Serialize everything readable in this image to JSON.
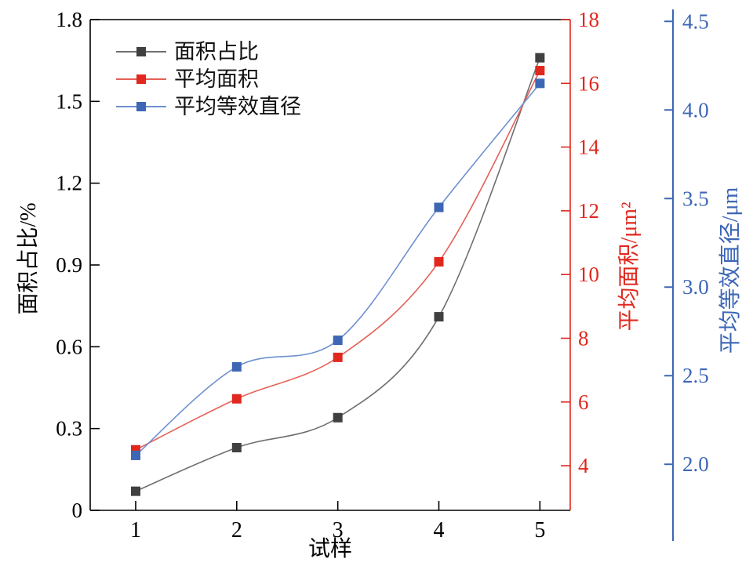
{
  "chart_data": {
    "type": "line",
    "xlabel": "试样",
    "x": [
      1,
      2,
      3,
      4,
      5
    ],
    "x_tick_labels": [
      "1",
      "2",
      "3",
      "4",
      "5"
    ],
    "grid": false,
    "legend_position": "top-left",
    "series": [
      {
        "key": "area-fraction",
        "name": "面积占比",
        "axis": "left",
        "line_color": "#6f6f6f",
        "marker_color": "#404040",
        "values": [
          0.07,
          0.23,
          0.34,
          0.71,
          1.66
        ]
      },
      {
        "key": "average-area",
        "name": "平均面积",
        "axis": "right1",
        "line_color": "#e56057",
        "marker_color": "#e0281e",
        "values": [
          4.5,
          6.1,
          7.4,
          10.4,
          16.4
        ]
      },
      {
        "key": "average-equivalent-diameter",
        "name": "平均等效直径",
        "axis": "right2",
        "line_color": "#6e90d0",
        "marker_color": "#3d66b5",
        "values": [
          2.05,
          2.55,
          2.7,
          3.45,
          4.15
        ]
      }
    ],
    "axes": {
      "left": {
        "label": "面积占比/%",
        "min": 0,
        "max": 1.8,
        "tick_values": [
          0,
          0.3,
          0.6,
          0.9,
          1.2,
          1.5,
          1.8
        ],
        "tick_labels": [
          "0",
          "0.3",
          "0.6",
          "0.9",
          "1.2",
          "1.5",
          "1.8"
        ],
        "color": "#000000"
      },
      "right1": {
        "label": "平均面积/μm²",
        "min": 2.6,
        "max": 18,
        "tick_values": [
          4,
          6,
          8,
          10,
          12,
          14,
          16,
          18
        ],
        "tick_labels": [
          "4",
          "6",
          "8",
          "10",
          "12",
          "14",
          "16",
          "18"
        ],
        "color": "#e0281e"
      },
      "right2": {
        "label": "平均等效直径/μm",
        "min": 1.74,
        "max": 4.51,
        "tick_values": [
          2.0,
          2.5,
          3.0,
          3.5,
          4.0,
          4.5
        ],
        "tick_labels": [
          "2.0",
          "2.5",
          "3.0",
          "3.5",
          "4.0",
          "4.5"
        ],
        "color": "#3d66b5"
      }
    }
  }
}
